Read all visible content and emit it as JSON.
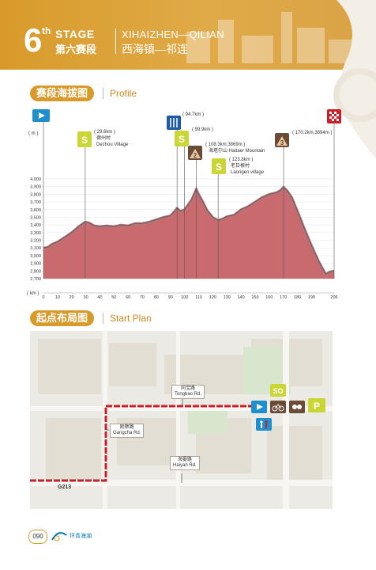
{
  "header": {
    "stage_number": "6",
    "stage_suffix": "th",
    "stage_label": "STAGE",
    "stage_cn": "第六赛段",
    "route_en": "XIHAIZHEN—QILIAN",
    "route_cn": "西海镇—祁连"
  },
  "profile_section": {
    "title_cn": "赛段海拔图",
    "title_en": "Profile",
    "y_unit": "( m )",
    "x_unit": "( km )"
  },
  "markers": {
    "sprint1": {
      "km": "( 29.6km )",
      "name_cn": "德州村",
      "name_en": "Dezhou Village"
    },
    "feed": {
      "km": "( 94.7km )"
    },
    "sprint2": {
      "km": "( 99.9km )"
    },
    "kom2": {
      "km": "( 108.3km,3869m )",
      "name_cn": "海塔尔山 Haitaer Mountain"
    },
    "sprint3": {
      "km": "( 123.8km )",
      "name_cn": "老日根村",
      "name_en": "Laorigen village"
    },
    "kom3": {
      "km": "( 170.2km,3894m )"
    }
  },
  "chart_data": {
    "type": "area",
    "title": "",
    "xlabel": "( km )",
    "ylabel": "( m )",
    "xlim": [
      0,
      206
    ],
    "ylim": [
      2700,
      4000
    ],
    "x_ticks": [
      "0",
      "10",
      "20",
      "30",
      "40",
      "50",
      "60",
      "70",
      "80",
      "90",
      "100",
      "110",
      "120",
      "130",
      "140",
      "150",
      "160",
      "170",
      "180",
      "190",
      "206"
    ],
    "y_ticks": [
      "2,700",
      "2,800",
      "2,900",
      "3,000",
      "3,100",
      "3,200",
      "3,300",
      "3,400",
      "3,500",
      "3,600",
      "3,700",
      "3,800",
      "3,900",
      "4,000"
    ],
    "series": [
      {
        "x": [
          0,
          3,
          6,
          10,
          15,
          20,
          25,
          29.6,
          32,
          36,
          40,
          45,
          50,
          55,
          60,
          65,
          70,
          75,
          80,
          85,
          90,
          93,
          94.7,
          97,
          99.9,
          102,
          105,
          108.3,
          110,
          113,
          116,
          120,
          123.8,
          127,
          130,
          135,
          140,
          145,
          150,
          155,
          160,
          165,
          168,
          170.2,
          173,
          176,
          180,
          185,
          190,
          195,
          200,
          203,
          206
        ],
        "y": [
          3100,
          3110,
          3150,
          3180,
          3240,
          3300,
          3380,
          3440,
          3430,
          3390,
          3380,
          3390,
          3380,
          3400,
          3390,
          3420,
          3420,
          3440,
          3470,
          3500,
          3520,
          3580,
          3620,
          3580,
          3600,
          3650,
          3730,
          3869,
          3800,
          3700,
          3590,
          3500,
          3460,
          3480,
          3510,
          3530,
          3600,
          3640,
          3700,
          3760,
          3800,
          3820,
          3850,
          3894,
          3840,
          3760,
          3580,
          3350,
          3130,
          2930,
          2760,
          2790,
          2800
        ]
      }
    ]
  },
  "plan_section": {
    "title_cn": "起点布局图",
    "title_en": "Start Plan"
  },
  "map": {
    "roads": [
      {
        "cn": "同宝路",
        "en": "Tongbao Rd."
      },
      {
        "cn": "刚察路",
        "en": "Gangcha Rd."
      },
      {
        "cn": "海晏路",
        "en": "Haiyan Rd."
      }
    ],
    "highway": "G213"
  },
  "footer": {
    "page_number": "090",
    "logo_text": "环青海湖"
  },
  "colors": {
    "gold": "#d89a2a",
    "red": "#c8202a",
    "profile_fill": "#c96a6e",
    "marker_green": "#c9d635",
    "marker_brown": "#6b4a36",
    "start_blue": "#1f8fce"
  }
}
